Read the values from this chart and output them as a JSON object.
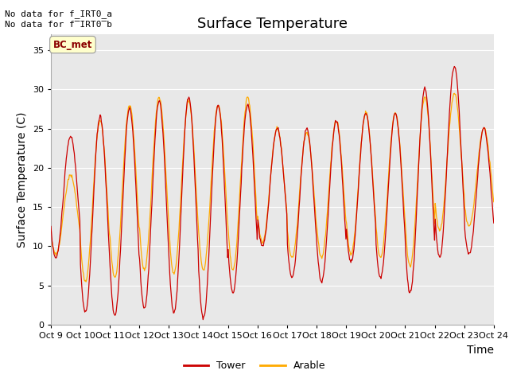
{
  "title": "Surface Temperature",
  "ylabel": "Surface Temperature (C)",
  "xlabel": "Time",
  "no_data_text1": "No data for f_IRT0_a",
  "no_data_text2": "No data for f̅IRT0̅b",
  "bc_met_label": "BC_met",
  "legend_tower": "Tower",
  "legend_arable": "Arable",
  "ylim": [
    0,
    37
  ],
  "yticks": [
    0,
    5,
    10,
    15,
    20,
    25,
    30,
    35
  ],
  "bg_color": "#ffffff",
  "plot_bg_color": "#e8e8e8",
  "tower_color": "#cc0000",
  "arable_color": "#ffaa00",
  "grid_color": "#ffffff",
  "title_fontsize": 13,
  "axis_label_fontsize": 10,
  "tick_fontsize": 8,
  "n_days": 15,
  "n_per_day": 48,
  "tower_maxes": [
    24,
    26.5,
    27.5,
    28.5,
    29,
    28,
    28,
    25,
    25,
    26,
    27,
    27,
    30,
    33,
    25
  ],
  "tower_mins": [
    8.5,
    1.5,
    1.2,
    2,
    1.5,
    0.8,
    4,
    10,
    6,
    5.5,
    8,
    6,
    4,
    8.5,
    9
  ],
  "arable_maxes": [
    19,
    26,
    28,
    29,
    28.5,
    28,
    29,
    25,
    24.5,
    26,
    27,
    27,
    29,
    29.5,
    25
  ],
  "arable_mins": [
    9,
    5.5,
    6,
    7,
    6.5,
    7,
    7,
    10.5,
    8.5,
    8.5,
    9,
    8.5,
    7.5,
    12,
    12.5
  ],
  "x_tick_labels": [
    "Oct 9",
    "Oct 10",
    "Oct 11",
    "Oct 12",
    "Oct 13",
    "Oct 14",
    "Oct 15",
    "Oct 16",
    "Oct 17",
    "Oct 18",
    "Oct 19",
    "Oct 20",
    "Oct 21",
    "Oct 22",
    "Oct 23",
    "Oct 24"
  ]
}
